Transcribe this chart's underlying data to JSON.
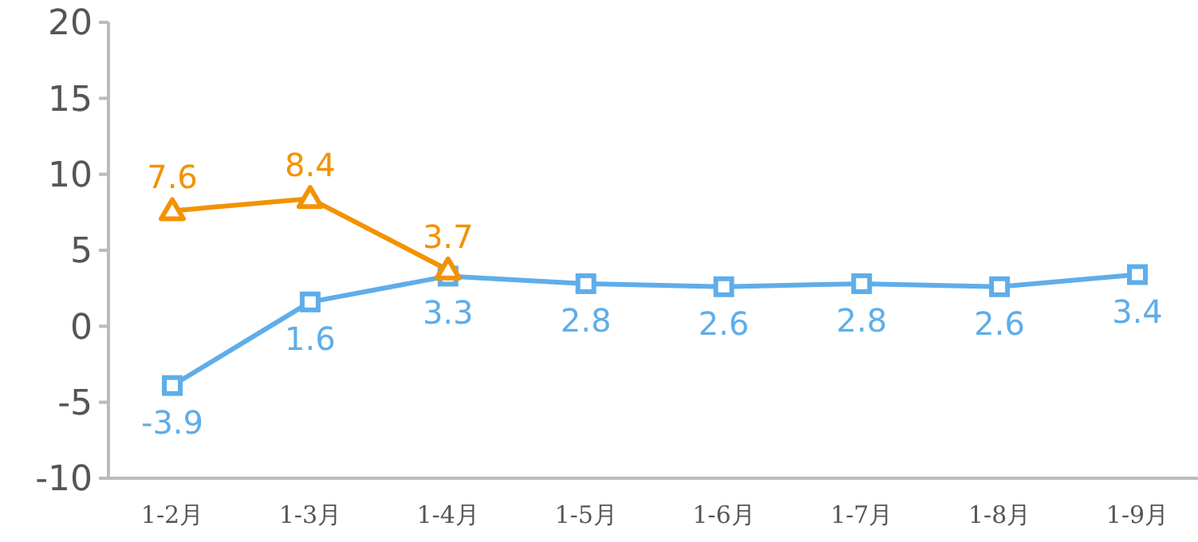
{
  "chart_data": {
    "type": "line",
    "categories": [
      "1-2月",
      "1-3月",
      "1-4月",
      "1-5月",
      "1-6月",
      "1-7月",
      "1-8月",
      "1-9月"
    ],
    "series": [
      {
        "color": "#5fade9",
        "marker": "square",
        "values": [
          -3.9,
          1.6,
          3.3,
          2.8,
          2.6,
          2.8,
          2.6,
          3.4
        ]
      },
      {
        "color": "#f39200",
        "marker": "triangle",
        "values": [
          7.6,
          8.4,
          3.7,
          null,
          null,
          null,
          null,
          null
        ]
      }
    ],
    "ylim": [
      -10,
      20
    ],
    "yticks": [
      -10,
      -5,
      0,
      5,
      10,
      15,
      20
    ],
    "data_labels": true
  }
}
